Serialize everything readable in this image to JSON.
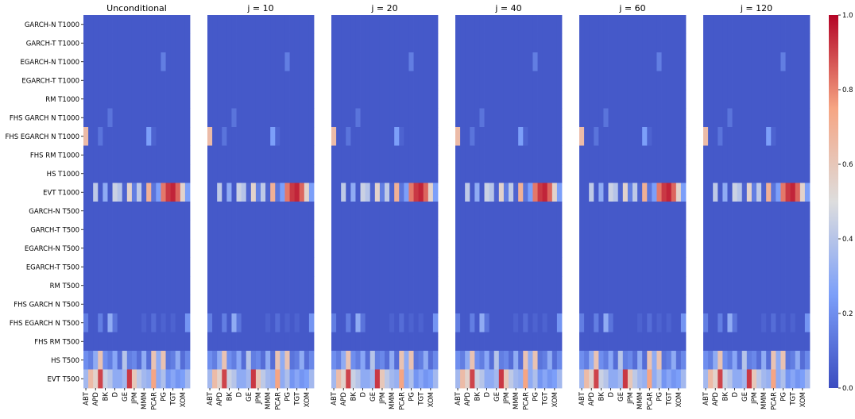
{
  "chart_data": {
    "type": "heatmap",
    "panels": [
      {
        "title": "Unconditional"
      },
      {
        "title": "j = 10"
      },
      {
        "title": "j = 20"
      },
      {
        "title": "j = 40"
      },
      {
        "title": "j = 60"
      },
      {
        "title": "j = 120"
      }
    ],
    "row_labels": [
      "GARCH-N T1000",
      "GARCH-T T1000",
      "EGARCH-N T1000",
      "EGARCH-T T1000",
      "RM T1000",
      "FHS GARCH N T1000",
      "FHS EGARCH N T1000",
      "FHS RM T1000",
      "HS T1000",
      "EVT T1000",
      "GARCH-N T500",
      "GARCH-T T500",
      "EGARCH-N T500",
      "EGARCH-T T500",
      "RM T500",
      "FHS GARCH N T500",
      "FHS EGARCH N T500",
      "FHS RM T500",
      "HS T500",
      "EVT T500"
    ],
    "col_tick_labels": [
      "ABT",
      "APD",
      "BK",
      "D",
      "GE",
      "JPM",
      "MMM",
      "PCAR",
      "PG",
      "TGT",
      "XOM"
    ],
    "n_columns": 22,
    "colorbar": {
      "colormap": "coolwarm",
      "range": [
        0.0,
        1.0
      ],
      "ticks": [
        "0.0",
        "0.2",
        "0.4",
        "0.6",
        "0.8",
        "1.0"
      ]
    },
    "matrix": [
      [
        0.04,
        0.04,
        0.04,
        0.04,
        0.04,
        0.04,
        0.04,
        0.04,
        0.04,
        0.04,
        0.04,
        0.04,
        0.04,
        0.04,
        0.04,
        0.04,
        0.04,
        0.04,
        0.04,
        0.04,
        0.04,
        0.04
      ],
      [
        0.04,
        0.04,
        0.04,
        0.04,
        0.04,
        0.04,
        0.04,
        0.04,
        0.04,
        0.04,
        0.04,
        0.04,
        0.04,
        0.04,
        0.04,
        0.04,
        0.04,
        0.04,
        0.04,
        0.04,
        0.04,
        0.04
      ],
      [
        0.04,
        0.04,
        0.04,
        0.04,
        0.04,
        0.04,
        0.04,
        0.04,
        0.04,
        0.04,
        0.04,
        0.04,
        0.04,
        0.04,
        0.04,
        0.04,
        0.15,
        0.04,
        0.04,
        0.04,
        0.04,
        0.04
      ],
      [
        0.04,
        0.04,
        0.04,
        0.04,
        0.04,
        0.04,
        0.04,
        0.04,
        0.04,
        0.04,
        0.04,
        0.04,
        0.04,
        0.04,
        0.04,
        0.04,
        0.04,
        0.04,
        0.04,
        0.04,
        0.04,
        0.04
      ],
      [
        0.04,
        0.04,
        0.04,
        0.04,
        0.04,
        0.04,
        0.04,
        0.04,
        0.04,
        0.04,
        0.04,
        0.04,
        0.04,
        0.04,
        0.04,
        0.04,
        0.04,
        0.04,
        0.04,
        0.04,
        0.04,
        0.04
      ],
      [
        0.04,
        0.04,
        0.04,
        0.04,
        0.04,
        0.12,
        0.04,
        0.04,
        0.04,
        0.04,
        0.04,
        0.04,
        0.04,
        0.04,
        0.04,
        0.04,
        0.04,
        0.04,
        0.04,
        0.04,
        0.04,
        0.04
      ],
      [
        0.65,
        0.04,
        0.04,
        0.12,
        0.04,
        0.04,
        0.04,
        0.04,
        0.04,
        0.04,
        0.04,
        0.04,
        0.04,
        0.25,
        0.07,
        0.04,
        0.04,
        0.04,
        0.04,
        0.04,
        0.04,
        0.04
      ],
      [
        0.04,
        0.04,
        0.04,
        0.04,
        0.04,
        0.04,
        0.04,
        0.04,
        0.04,
        0.04,
        0.04,
        0.04,
        0.04,
        0.04,
        0.04,
        0.04,
        0.04,
        0.04,
        0.04,
        0.04,
        0.04,
        0.04
      ],
      [
        0.04,
        0.04,
        0.04,
        0.04,
        0.04,
        0.04,
        0.04,
        0.04,
        0.04,
        0.04,
        0.04,
        0.04,
        0.04,
        0.04,
        0.04,
        0.04,
        0.04,
        0.04,
        0.04,
        0.04,
        0.04,
        0.04
      ],
      [
        0.04,
        0.04,
        0.42,
        0.04,
        0.3,
        0.04,
        0.45,
        0.4,
        0.07,
        0.55,
        0.15,
        0.42,
        0.07,
        0.7,
        0.12,
        0.25,
        0.82,
        0.92,
        0.95,
        0.85,
        0.55,
        0.25
      ],
      [
        0.04,
        0.04,
        0.04,
        0.04,
        0.04,
        0.04,
        0.04,
        0.04,
        0.04,
        0.04,
        0.04,
        0.04,
        0.04,
        0.04,
        0.04,
        0.04,
        0.04,
        0.04,
        0.04,
        0.04,
        0.04,
        0.04
      ],
      [
        0.04,
        0.04,
        0.04,
        0.04,
        0.04,
        0.04,
        0.04,
        0.04,
        0.04,
        0.04,
        0.04,
        0.04,
        0.04,
        0.04,
        0.04,
        0.04,
        0.04,
        0.04,
        0.04,
        0.04,
        0.04,
        0.04
      ],
      [
        0.04,
        0.04,
        0.04,
        0.04,
        0.04,
        0.04,
        0.04,
        0.04,
        0.04,
        0.04,
        0.04,
        0.04,
        0.04,
        0.04,
        0.04,
        0.04,
        0.04,
        0.04,
        0.04,
        0.04,
        0.04,
        0.04
      ],
      [
        0.04,
        0.04,
        0.04,
        0.04,
        0.04,
        0.04,
        0.04,
        0.04,
        0.04,
        0.04,
        0.04,
        0.04,
        0.04,
        0.04,
        0.04,
        0.04,
        0.04,
        0.04,
        0.04,
        0.04,
        0.04,
        0.04
      ],
      [
        0.04,
        0.04,
        0.04,
        0.04,
        0.04,
        0.04,
        0.04,
        0.04,
        0.04,
        0.04,
        0.04,
        0.04,
        0.04,
        0.04,
        0.04,
        0.04,
        0.04,
        0.04,
        0.04,
        0.04,
        0.04,
        0.04
      ],
      [
        0.04,
        0.04,
        0.04,
        0.04,
        0.04,
        0.04,
        0.04,
        0.04,
        0.04,
        0.04,
        0.04,
        0.04,
        0.04,
        0.04,
        0.04,
        0.04,
        0.04,
        0.04,
        0.04,
        0.04,
        0.04,
        0.04
      ],
      [
        0.15,
        0.04,
        0.04,
        0.15,
        0.04,
        0.3,
        0.12,
        0.04,
        0.04,
        0.04,
        0.04,
        0.04,
        0.07,
        0.04,
        0.1,
        0.04,
        0.07,
        0.04,
        0.07,
        0.04,
        0.04,
        0.22
      ],
      [
        0.04,
        0.04,
        0.04,
        0.04,
        0.04,
        0.04,
        0.04,
        0.04,
        0.04,
        0.04,
        0.04,
        0.04,
        0.04,
        0.04,
        0.04,
        0.04,
        0.04,
        0.04,
        0.04,
        0.04,
        0.04,
        0.04
      ],
      [
        0.2,
        0.15,
        0.3,
        0.62,
        0.2,
        0.15,
        0.28,
        0.1,
        0.4,
        0.15,
        0.18,
        0.1,
        0.3,
        0.1,
        0.62,
        0.3,
        0.62,
        0.12,
        0.15,
        0.3,
        0.1,
        0.18
      ],
      [
        0.35,
        0.65,
        0.55,
        0.9,
        0.45,
        0.4,
        0.3,
        0.3,
        0.35,
        0.92,
        0.6,
        0.42,
        0.35,
        0.32,
        0.75,
        0.3,
        0.38,
        0.22,
        0.28,
        0.22,
        0.25,
        0.35
      ]
    ]
  }
}
